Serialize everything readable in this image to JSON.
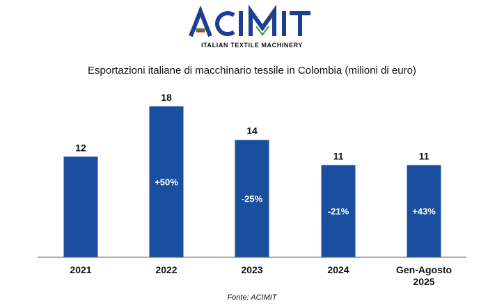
{
  "brand": {
    "name": "ACIMIT",
    "tagline": "ITALIAN TEXTILE MACHINERY",
    "primary_color": "#1d3f91",
    "flag_colors": [
      "#2e9a45",
      "#ffffff",
      "#d42a2a"
    ]
  },
  "chart_data": {
    "type": "bar",
    "title": "Esportazioni italiane di macchinario tessile in Colombia (milioni di euro)",
    "categories": [
      "2021",
      "2022",
      "2023",
      "2024",
      "Gen-Agosto 2025"
    ],
    "values": [
      12,
      18,
      14,
      11,
      11
    ],
    "value_labels": [
      "12",
      "18",
      "14",
      "11",
      "11"
    ],
    "change_labels": [
      "",
      "+50%",
      "-25%",
      "-21%",
      "+43%"
    ],
    "xlabel": "",
    "ylabel": "",
    "ylim": [
      0,
      18
    ],
    "grid": false,
    "legend": "none",
    "bar_color": "#1a4f9f"
  },
  "source": "Fonte: ACIMIT"
}
